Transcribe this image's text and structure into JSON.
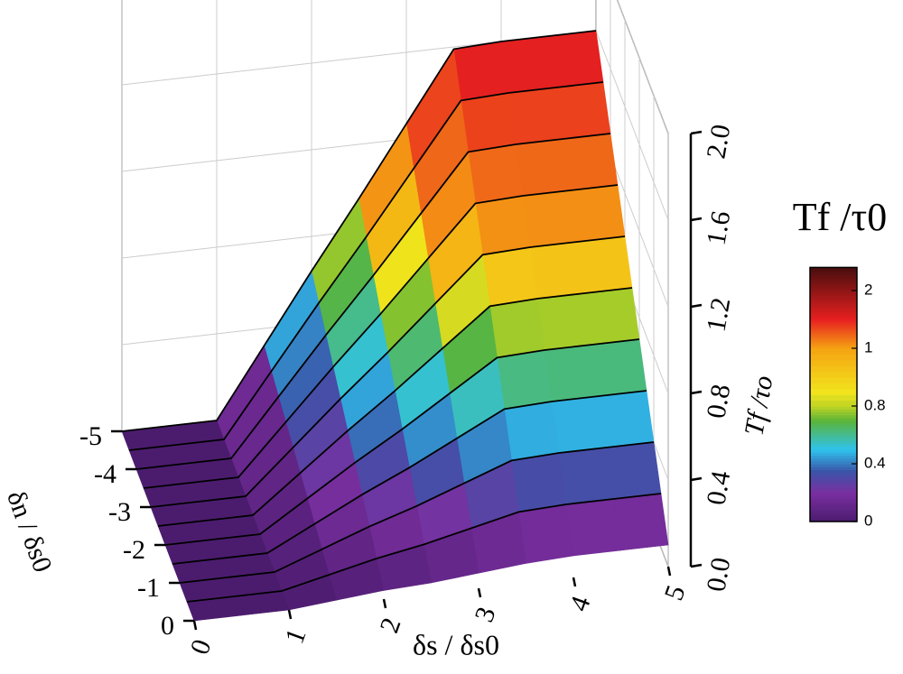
{
  "chart_data": {
    "type": "surface3d",
    "x_label": "δs / δs0",
    "y_label": "δn / δs0",
    "z_label": "Tf /τo",
    "colorbar_title": "Tf /τ0",
    "x": [
      0,
      0.5,
      1,
      1.5,
      2,
      2.5,
      3,
      3.5,
      4,
      4.5,
      5
    ],
    "y": [
      0,
      -0.5,
      -1,
      -1.5,
      -2,
      -2.5,
      -3,
      -3.5,
      -4,
      -4.5,
      -5
    ],
    "z": [
      [
        0,
        0,
        0,
        0.02,
        0.04,
        0.05,
        0.07,
        0.09,
        0.1,
        0.1,
        0.1
      ],
      [
        0,
        0,
        0,
        0.05,
        0.1,
        0.14,
        0.19,
        0.24,
        0.25,
        0.25,
        0.25
      ],
      [
        0,
        0,
        0,
        0.08,
        0.16,
        0.23,
        0.31,
        0.39,
        0.4,
        0.4,
        0.4
      ],
      [
        0,
        0,
        0,
        0.11,
        0.22,
        0.32,
        0.43,
        0.54,
        0.55,
        0.55,
        0.55
      ],
      [
        0,
        0,
        0,
        0.14,
        0.28,
        0.41,
        0.55,
        0.69,
        0.7,
        0.7,
        0.7
      ],
      [
        0,
        0,
        0,
        0.17,
        0.34,
        0.5,
        0.67,
        0.84,
        0.85,
        0.85,
        0.85
      ],
      [
        0,
        0,
        0,
        0.2,
        0.4,
        0.59,
        0.79,
        0.99,
        1,
        1,
        1
      ],
      [
        0,
        0,
        0,
        0.23,
        0.46,
        0.68,
        0.91,
        1.14,
        1.15,
        1.15,
        1.15
      ],
      [
        0,
        0,
        0,
        0.26,
        0.52,
        0.77,
        1.03,
        1.29,
        1.3,
        1.3,
        1.3
      ],
      [
        0,
        0,
        0,
        0.29,
        0.58,
        0.86,
        1.15,
        1.44,
        1.45,
        1.45,
        1.45
      ],
      [
        0,
        0,
        0,
        0.32,
        0.64,
        0.95,
        1.27,
        1.59,
        1.6,
        1.6,
        1.6
      ]
    ],
    "xlim": [
      0,
      5
    ],
    "ylim": [
      -5,
      0
    ],
    "zlim": [
      0,
      2
    ],
    "xticks": [
      0,
      1,
      2,
      3,
      4,
      5
    ],
    "yticks": [
      0,
      -1,
      -2,
      -3,
      -4,
      -5
    ],
    "zticks": [
      {
        "value": 0,
        "label": "0.0"
      },
      0.4,
      0.8,
      1.2,
      1.6,
      {
        "value": 2,
        "label": "2.0"
      }
    ],
    "clim": [
      0,
      2.4
    ],
    "colorbar_ticks": [
      0,
      0.4,
      0.8,
      1,
      2
    ],
    "colormap": [
      {
        "value": 0,
        "color": "#4b1c6e"
      },
      {
        "value": 0.2,
        "color": "#7a2fa0"
      },
      {
        "value": 0.35,
        "color": "#3a55a8"
      },
      {
        "value": 0.5,
        "color": "#2fc3ee"
      },
      {
        "value": 0.7,
        "color": "#5ab438"
      },
      {
        "value": 0.85,
        "color": "#f2e41c"
      },
      {
        "value": 1,
        "color": "#f5a312"
      },
      {
        "value": 1.5,
        "color": "#e82020"
      },
      {
        "value": 2.4,
        "color": "#4a0e0e"
      }
    ],
    "grid": true
  }
}
